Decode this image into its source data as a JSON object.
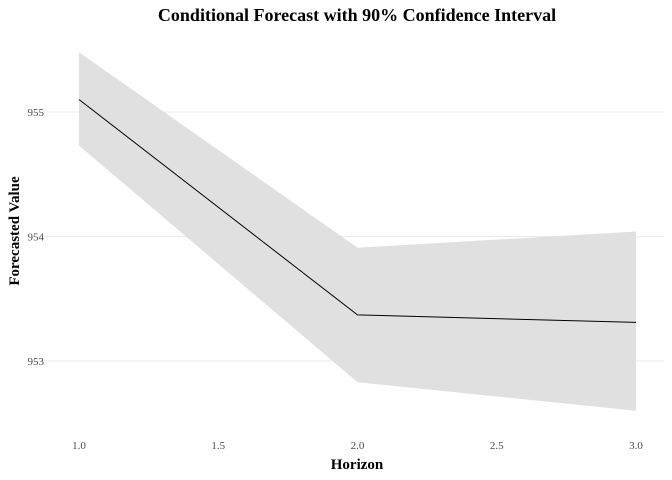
{
  "chart_data": {
    "type": "line",
    "title": "Conditional Forecast with 90% Confidence Interval",
    "xlabel": "Horizon",
    "ylabel": "Forecasted Value",
    "xlim": [
      1.0,
      3.0
    ],
    "ylim": [
      952.4,
      955.5
    ],
    "x_ticks": [
      1.0,
      1.5,
      2.0,
      2.5,
      3.0
    ],
    "x_tick_labels": [
      "1.0",
      "1.5",
      "2.0",
      "2.5",
      "3.0"
    ],
    "y_ticks": [
      953,
      954,
      955
    ],
    "y_tick_labels": [
      "953",
      "954",
      "955"
    ],
    "grid": "horizontal",
    "x": [
      1.0,
      2.0,
      3.0
    ],
    "series": [
      {
        "role": "forecast",
        "values": [
          955.1,
          953.37,
          953.31
        ],
        "color": "#000000"
      }
    ],
    "band": {
      "role": "confidence-interval",
      "level": 0.9,
      "lower": [
        954.73,
        952.83,
        952.6
      ],
      "upper": [
        955.48,
        953.91,
        954.04
      ],
      "color": "#e0e0e0"
    }
  }
}
